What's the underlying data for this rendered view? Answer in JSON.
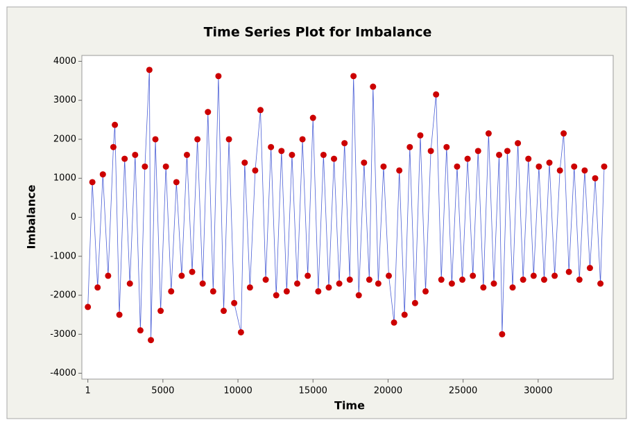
{
  "chart_data": {
    "type": "line",
    "title": "Time Series Plot for Imbalance",
    "x_label": "Time",
    "y_label": "Imbalance",
    "x": [
      1,
      300,
      650,
      1000,
      1350,
      1700,
      1800,
      2100,
      2450,
      2800,
      3150,
      3500,
      3800,
      4100,
      4200,
      4500,
      4850,
      5200,
      5550,
      5900,
      6250,
      6600,
      6950,
      7300,
      7650,
      8000,
      8350,
      8700,
      9050,
      9400,
      9750,
      10200,
      10450,
      10800,
      11150,
      11500,
      11850,
      12200,
      12550,
      12900,
      13250,
      13600,
      13950,
      14300,
      14650,
      15000,
      15350,
      15700,
      16050,
      16400,
      16750,
      17100,
      17450,
      17700,
      18050,
      18400,
      18750,
      19000,
      19350,
      19700,
      20050,
      20400,
      20750,
      21100,
      21450,
      21800,
      22150,
      22500,
      22850,
      23200,
      23550,
      23900,
      24250,
      24600,
      24950,
      25300,
      25650,
      26000,
      26350,
      26700,
      27050,
      27400,
      27600,
      27950,
      28300,
      28650,
      29000,
      29350,
      29700,
      30050,
      30400,
      30750,
      31100,
      31450,
      31700,
      32050,
      32400,
      32750,
      33100,
      33450,
      33800,
      34150,
      34400
    ],
    "values": [
      -2300,
      900,
      -1800,
      1100,
      -1500,
      1800,
      2370,
      -2500,
      1500,
      -1700,
      1600,
      -2900,
      1300,
      3780,
      -3150,
      2000,
      -2400,
      1300,
      -1900,
      900,
      -1500,
      1600,
      -1400,
      2000,
      -1700,
      2700,
      -1900,
      3620,
      -2400,
      2000,
      -2200,
      -2950,
      1400,
      -1800,
      1200,
      2750,
      -1600,
      1800,
      -2000,
      1700,
      -1900,
      1600,
      -1700,
      2000,
      -1500,
      2550,
      -1900,
      1600,
      -1800,
      1500,
      -1700,
      1900,
      -1600,
      3620,
      -2000,
      1400,
      -1600,
      3350,
      -1700,
      1300,
      -1500,
      -2700,
      1200,
      -2500,
      1800,
      -2200,
      2100,
      -1900,
      1700,
      3150,
      -1600,
      1800,
      -1700,
      1300,
      -1600,
      1500,
      -1500,
      1700,
      -1800,
      2150,
      -1700,
      1600,
      -3000,
      1700,
      -1800,
      1900,
      -1600,
      1500,
      -1500,
      1300,
      -1600,
      1400,
      -1500,
      1200,
      2150,
      -1400,
      1300,
      -1600,
      1200,
      -1300,
      1000,
      -1700,
      1300
    ],
    "color": "#cc0000",
    "line_color": "#4b5fd6",
    "xlim": [
      -400,
      35000
    ],
    "xticks": [
      1,
      5000,
      10000,
      15000,
      20000,
      25000,
      30000
    ],
    "ylim": [
      -4150,
      4150
    ],
    "yticks": [
      -4000,
      -3000,
      -2000,
      -1000,
      0,
      1000,
      2000,
      3000,
      4000
    ],
    "grid": false
  }
}
